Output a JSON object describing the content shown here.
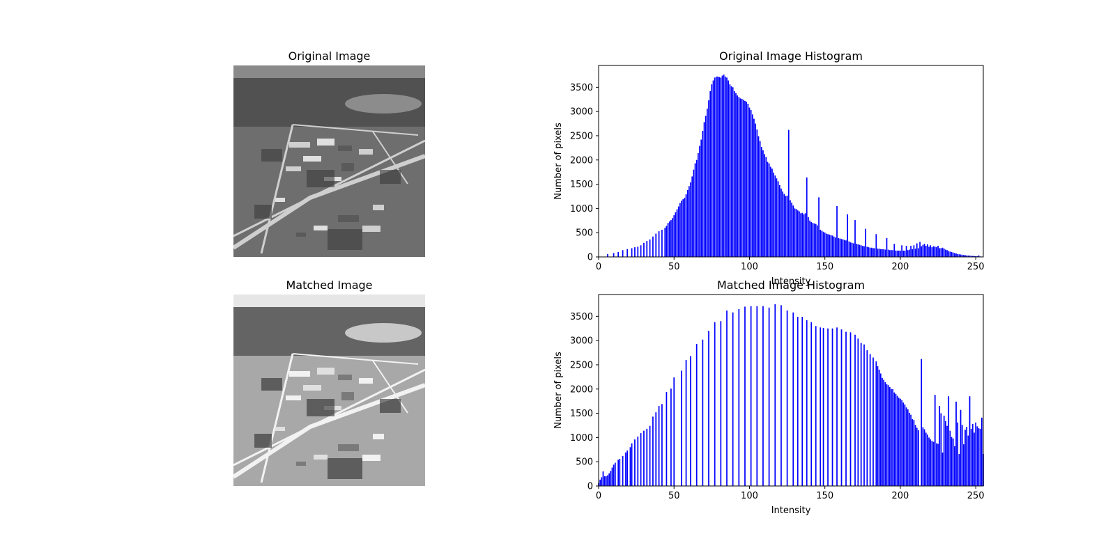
{
  "panels": {
    "original_image": {
      "title": "Original Image"
    },
    "matched_image": {
      "title": "Matched Image"
    }
  },
  "colors": {
    "bars": "#0000ff",
    "axes": "#000000"
  },
  "chart_data": [
    {
      "type": "bar",
      "title": "Original Image Histogram",
      "xlabel": "Intensity",
      "ylabel": "Number of pixels",
      "xlim": [
        0,
        255
      ],
      "ylim": [
        0,
        3950
      ],
      "xticks": [
        0,
        50,
        100,
        150,
        200,
        250
      ],
      "yticks": [
        0,
        500,
        1000,
        1500,
        2000,
        2500,
        3000,
        3500
      ],
      "bar_color": "#0000ff",
      "bars": [
        [
          6,
          60
        ],
        [
          10,
          80
        ],
        [
          13,
          100
        ],
        [
          16,
          140
        ],
        [
          19,
          160
        ],
        [
          22,
          180
        ],
        [
          24,
          200
        ],
        [
          26,
          210
        ],
        [
          28,
          240
        ],
        [
          30,
          290
        ],
        [
          32,
          330
        ],
        [
          34,
          360
        ],
        [
          36,
          420
        ],
        [
          38,
          480
        ],
        [
          40,
          530
        ],
        [
          42,
          560
        ],
        [
          44,
          600
        ],
        [
          45,
          640
        ],
        [
          46,
          700
        ],
        [
          47,
          730
        ],
        [
          48,
          760
        ],
        [
          49,
          800
        ],
        [
          50,
          860
        ],
        [
          51,
          920
        ],
        [
          52,
          980
        ],
        [
          53,
          1040
        ],
        [
          54,
          1110
        ],
        [
          55,
          1160
        ],
        [
          56,
          1190
        ],
        [
          57,
          1220
        ],
        [
          58,
          1290
        ],
        [
          59,
          1380
        ],
        [
          60,
          1460
        ],
        [
          61,
          1540
        ],
        [
          62,
          1660
        ],
        [
          63,
          1800
        ],
        [
          64,
          1930
        ],
        [
          65,
          2000
        ],
        [
          66,
          2140
        ],
        [
          67,
          2290
        ],
        [
          68,
          2420
        ],
        [
          69,
          2600
        ],
        [
          70,
          2780
        ],
        [
          71,
          2910
        ],
        [
          72,
          3060
        ],
        [
          73,
          3230
        ],
        [
          74,
          3420
        ],
        [
          75,
          3560
        ],
        [
          76,
          3640
        ],
        [
          77,
          3700
        ],
        [
          78,
          3720
        ],
        [
          79,
          3720
        ],
        [
          80,
          3710
        ],
        [
          81,
          3700
        ],
        [
          82,
          3740
        ],
        [
          83,
          3760
        ],
        [
          84,
          3720
        ],
        [
          85,
          3700
        ],
        [
          86,
          3640
        ],
        [
          87,
          3560
        ],
        [
          88,
          3520
        ],
        [
          89,
          3500
        ],
        [
          90,
          3420
        ],
        [
          91,
          3380
        ],
        [
          92,
          3330
        ],
        [
          93,
          3300
        ],
        [
          94,
          3270
        ],
        [
          95,
          3260
        ],
        [
          96,
          3240
        ],
        [
          97,
          3220
        ],
        [
          98,
          3200
        ],
        [
          99,
          3160
        ],
        [
          100,
          3080
        ],
        [
          101,
          3030
        ],
        [
          102,
          2940
        ],
        [
          103,
          2850
        ],
        [
          104,
          2750
        ],
        [
          105,
          2630
        ],
        [
          106,
          2490
        ],
        [
          107,
          2390
        ],
        [
          108,
          2270
        ],
        [
          109,
          2200
        ],
        [
          110,
          2120
        ],
        [
          111,
          2060
        ],
        [
          112,
          1960
        ],
        [
          113,
          1930
        ],
        [
          114,
          1860
        ],
        [
          115,
          1820
        ],
        [
          116,
          1740
        ],
        [
          117,
          1680
        ],
        [
          118,
          1620
        ],
        [
          119,
          1560
        ],
        [
          120,
          1480
        ],
        [
          121,
          1410
        ],
        [
          122,
          1350
        ],
        [
          123,
          1300
        ],
        [
          124,
          1260
        ],
        [
          125,
          1260
        ],
        [
          126,
          2620
        ],
        [
          127,
          1170
        ],
        [
          128,
          1120
        ],
        [
          129,
          1060
        ],
        [
          130,
          1000
        ],
        [
          131,
          990
        ],
        [
          132,
          960
        ],
        [
          133,
          940
        ],
        [
          134,
          900
        ],
        [
          135,
          910
        ],
        [
          136,
          880
        ],
        [
          137,
          900
        ],
        [
          138,
          1640
        ],
        [
          139,
          820
        ],
        [
          140,
          750
        ],
        [
          141,
          720
        ],
        [
          142,
          700
        ],
        [
          143,
          690
        ],
        [
          144,
          680
        ],
        [
          145,
          650
        ],
        [
          146,
          1230
        ],
        [
          147,
          560
        ],
        [
          148,
          540
        ],
        [
          149,
          520
        ],
        [
          150,
          500
        ],
        [
          151,
          480
        ],
        [
          152,
          470
        ],
        [
          153,
          460
        ],
        [
          154,
          450
        ],
        [
          155,
          440
        ],
        [
          156,
          420
        ],
        [
          157,
          400
        ],
        [
          158,
          1050
        ],
        [
          159,
          390
        ],
        [
          160,
          380
        ],
        [
          161,
          370
        ],
        [
          162,
          360
        ],
        [
          163,
          350
        ],
        [
          164,
          340
        ],
        [
          165,
          880
        ],
        [
          166,
          320
        ],
        [
          167,
          300
        ],
        [
          168,
          290
        ],
        [
          169,
          280
        ],
        [
          170,
          760
        ],
        [
          171,
          270
        ],
        [
          172,
          260
        ],
        [
          173,
          250
        ],
        [
          174,
          240
        ],
        [
          175,
          230
        ],
        [
          176,
          220
        ],
        [
          177,
          580
        ],
        [
          178,
          210
        ],
        [
          179,
          200
        ],
        [
          180,
          190
        ],
        [
          181,
          190
        ],
        [
          182,
          180
        ],
        [
          183,
          180
        ],
        [
          184,
          470
        ],
        [
          185,
          170
        ],
        [
          186,
          170
        ],
        [
          187,
          160
        ],
        [
          188,
          160
        ],
        [
          189,
          160
        ],
        [
          190,
          150
        ],
        [
          191,
          390
        ],
        [
          192,
          150
        ],
        [
          193,
          140
        ],
        [
          194,
          140
        ],
        [
          195,
          140
        ],
        [
          196,
          270
        ],
        [
          197,
          130
        ],
        [
          198,
          130
        ],
        [
          199,
          130
        ],
        [
          200,
          130
        ],
        [
          201,
          240
        ],
        [
          202,
          130
        ],
        [
          203,
          130
        ],
        [
          204,
          230
        ],
        [
          205,
          140
        ],
        [
          206,
          150
        ],
        [
          207,
          230
        ],
        [
          208,
          160
        ],
        [
          209,
          240
        ],
        [
          210,
          170
        ],
        [
          211,
          280
        ],
        [
          212,
          180
        ],
        [
          213,
          310
        ],
        [
          214,
          220
        ],
        [
          215,
          250
        ],
        [
          216,
          270
        ],
        [
          217,
          230
        ],
        [
          218,
          260
        ],
        [
          219,
          210
        ],
        [
          220,
          240
        ],
        [
          221,
          200
        ],
        [
          222,
          220
        ],
        [
          223,
          210
        ],
        [
          224,
          200
        ],
        [
          225,
          230
        ],
        [
          226,
          180
        ],
        [
          227,
          180
        ],
        [
          228,
          190
        ],
        [
          229,
          170
        ],
        [
          230,
          150
        ],
        [
          231,
          140
        ],
        [
          232,
          120
        ],
        [
          233,
          110
        ],
        [
          234,
          100
        ],
        [
          235,
          90
        ],
        [
          236,
          80
        ],
        [
          237,
          70
        ],
        [
          238,
          60
        ],
        [
          239,
          55
        ],
        [
          240,
          50
        ],
        [
          241,
          45
        ],
        [
          242,
          40
        ],
        [
          243,
          35
        ],
        [
          244,
          30
        ],
        [
          245,
          28
        ],
        [
          246,
          25
        ],
        [
          247,
          22
        ],
        [
          248,
          20
        ],
        [
          249,
          18
        ],
        [
          250,
          16
        ],
        [
          251,
          14
        ],
        [
          252,
          30
        ],
        [
          253,
          10
        ]
      ]
    },
    {
      "type": "bar",
      "title": "Matched Image Histogram",
      "xlabel": "Intensity",
      "ylabel": "Number of pixels",
      "xlim": [
        0,
        255
      ],
      "ylim": [
        0,
        3950
      ],
      "xticks": [
        0,
        50,
        100,
        150,
        200,
        250
      ],
      "yticks": [
        0,
        500,
        1000,
        1500,
        2000,
        2500,
        3000,
        3500
      ],
      "bar_color": "#0000ff",
      "bars": [
        [
          0,
          60
        ],
        [
          1,
          130
        ],
        [
          2,
          180
        ],
        [
          3,
          300
        ],
        [
          4,
          200
        ],
        [
          5,
          200
        ],
        [
          6,
          220
        ],
        [
          7,
          260
        ],
        [
          8,
          310
        ],
        [
          9,
          380
        ],
        [
          10,
          440
        ],
        [
          11,
          480
        ],
        [
          13,
          540
        ],
        [
          14,
          560
        ],
        [
          16,
          620
        ],
        [
          18,
          690
        ],
        [
          19,
          730
        ],
        [
          21,
          800
        ],
        [
          22,
          880
        ],
        [
          24,
          960
        ],
        [
          26,
          1020
        ],
        [
          28,
          1090
        ],
        [
          30,
          1140
        ],
        [
          32,
          1180
        ],
        [
          34,
          1240
        ],
        [
          36,
          1430
        ],
        [
          38,
          1520
        ],
        [
          40,
          1650
        ],
        [
          42,
          1690
        ],
        [
          45,
          1940
        ],
        [
          48,
          2010
        ],
        [
          50,
          2240
        ],
        [
          55,
          2380
        ],
        [
          58,
          2600
        ],
        [
          61,
          2680
        ],
        [
          65,
          2930
        ],
        [
          69,
          3020
        ],
        [
          73,
          3200
        ],
        [
          77,
          3380
        ],
        [
          81,
          3400
        ],
        [
          85,
          3620
        ],
        [
          89,
          3580
        ],
        [
          93,
          3650
        ],
        [
          97,
          3700
        ],
        [
          101,
          3710
        ],
        [
          105,
          3710
        ],
        [
          109,
          3710
        ],
        [
          113,
          3680
        ],
        [
          117,
          3750
        ],
        [
          121,
          3730
        ],
        [
          125,
          3620
        ],
        [
          129,
          3580
        ],
        [
          132,
          3490
        ],
        [
          135,
          3490
        ],
        [
          138,
          3420
        ],
        [
          141,
          3380
        ],
        [
          144,
          3300
        ],
        [
          147,
          3270
        ],
        [
          149,
          3260
        ],
        [
          152,
          3250
        ],
        [
          155,
          3250
        ],
        [
          158,
          3270
        ],
        [
          161,
          3230
        ],
        [
          164,
          3180
        ],
        [
          167,
          3170
        ],
        [
          170,
          3120
        ],
        [
          172,
          3040
        ],
        [
          174,
          2950
        ],
        [
          176,
          2920
        ],
        [
          178,
          2800
        ],
        [
          180,
          2720
        ],
        [
          182,
          2650
        ],
        [
          184,
          2570
        ],
        [
          185,
          2470
        ],
        [
          186,
          2400
        ],
        [
          187,
          2320
        ],
        [
          188,
          2230
        ],
        [
          189,
          2190
        ],
        [
          190,
          2140
        ],
        [
          191,
          2100
        ],
        [
          192,
          2080
        ],
        [
          193,
          2040
        ],
        [
          194,
          2000
        ],
        [
          195,
          2000
        ],
        [
          196,
          1930
        ],
        [
          197,
          1900
        ],
        [
          198,
          1860
        ],
        [
          199,
          1820
        ],
        [
          200,
          1800
        ],
        [
          201,
          1770
        ],
        [
          202,
          1720
        ],
        [
          203,
          1680
        ],
        [
          204,
          1620
        ],
        [
          205,
          1580
        ],
        [
          206,
          1510
        ],
        [
          207,
          1470
        ],
        [
          208,
          1380
        ],
        [
          209,
          1360
        ],
        [
          210,
          1260
        ],
        [
          211,
          1200
        ],
        [
          212,
          1150
        ],
        [
          214,
          2620
        ],
        [
          215,
          1210
        ],
        [
          216,
          1170
        ],
        [
          217,
          1100
        ],
        [
          218,
          1060
        ],
        [
          219,
          1000
        ],
        [
          220,
          960
        ],
        [
          221,
          930
        ],
        [
          222,
          910
        ],
        [
          223,
          1880
        ],
        [
          224,
          880
        ],
        [
          225,
          870
        ],
        [
          226,
          1650
        ],
        [
          227,
          1500
        ],
        [
          228,
          690
        ],
        [
          229,
          1450
        ],
        [
          230,
          1340
        ],
        [
          231,
          1240
        ],
        [
          232,
          1850
        ],
        [
          233,
          1140
        ],
        [
          234,
          1010
        ],
        [
          235,
          980
        ],
        [
          236,
          820
        ],
        [
          237,
          1740
        ],
        [
          238,
          1310
        ],
        [
          239,
          660
        ],
        [
          240,
          1570
        ],
        [
          241,
          1260
        ],
        [
          242,
          860
        ],
        [
          243,
          1160
        ],
        [
          244,
          1220
        ],
        [
          245,
          1040
        ],
        [
          246,
          1850
        ],
        [
          247,
          1180
        ],
        [
          248,
          1280
        ],
        [
          249,
          1100
        ],
        [
          250,
          1310
        ],
        [
          251,
          1230
        ],
        [
          252,
          1190
        ],
        [
          253,
          1180
        ],
        [
          254,
          1410
        ],
        [
          255,
          660
        ]
      ]
    }
  ]
}
